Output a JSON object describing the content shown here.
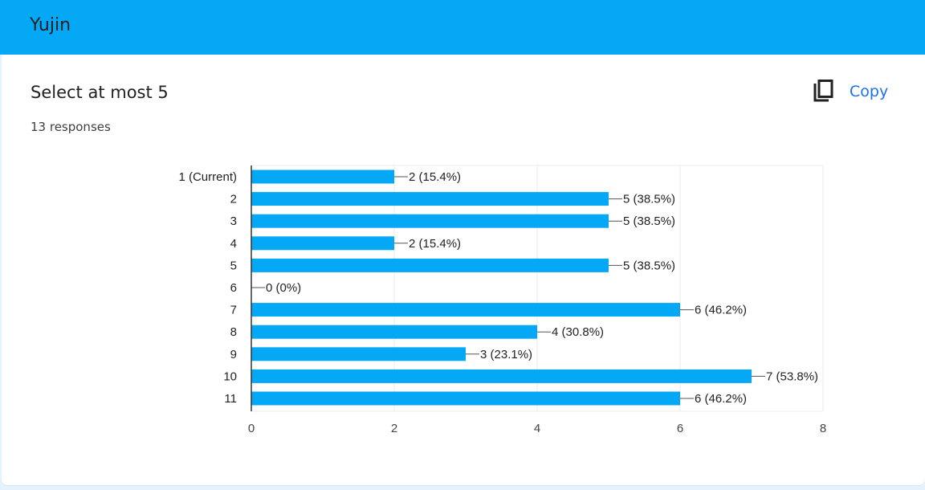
{
  "header": {
    "title": "Yujin"
  },
  "question": {
    "title": "Select at most 5",
    "responses": "13 responses"
  },
  "actions": {
    "copy_label": "Copy"
  },
  "colors": {
    "header": "#04a8f4",
    "bar": "#04a8f4",
    "link": "#1a73e8"
  },
  "chart_data": {
    "type": "bar",
    "orientation": "horizontal",
    "categories": [
      "1 (Current)",
      "2",
      "3",
      "4",
      "5",
      "6",
      "7",
      "8",
      "9",
      "10",
      "11"
    ],
    "values": [
      2,
      5,
      5,
      2,
      5,
      0,
      6,
      4,
      3,
      7,
      6
    ],
    "data_labels": [
      "2 (15.4%)",
      "5 (38.5%)",
      "5 (38.5%)",
      "2 (15.4%)",
      "5 (38.5%)",
      "0 (0%)",
      "6 (46.2%)",
      "4 (30.8%)",
      "3 (23.1%)",
      "7 (53.8%)",
      "6 (46.2%)"
    ],
    "xlim": [
      0,
      8
    ],
    "xticks": [
      "0",
      "2",
      "4",
      "6",
      "8"
    ],
    "grid": true
  }
}
